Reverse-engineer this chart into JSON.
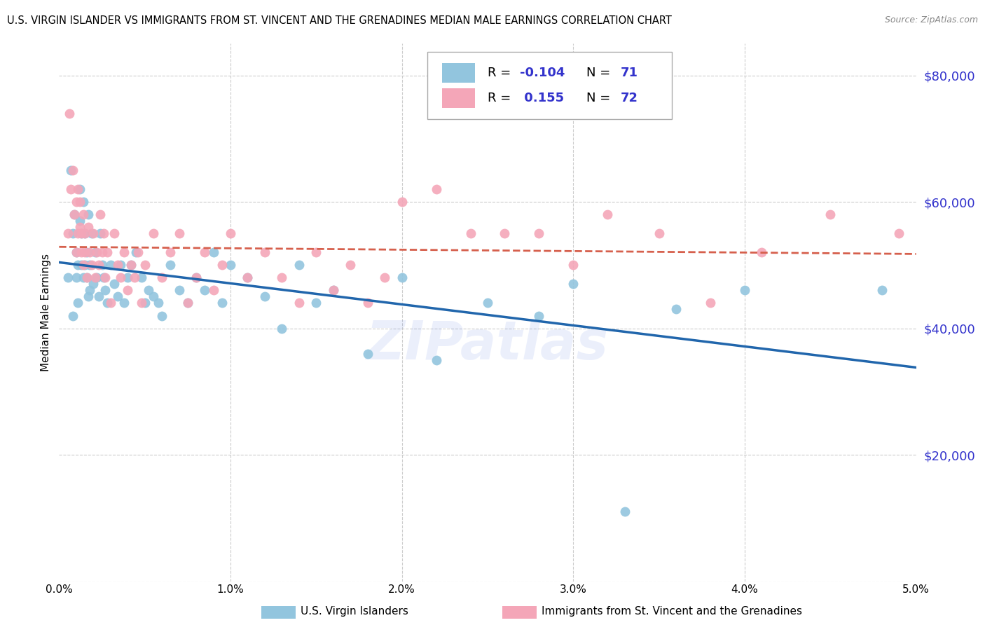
{
  "title": "U.S. VIRGIN ISLANDER VS IMMIGRANTS FROM ST. VINCENT AND THE GRENADINES MEDIAN MALE EARNINGS CORRELATION CHART",
  "source": "Source: ZipAtlas.com",
  "ylabel": "Median Male Earnings",
  "xlim": [
    0.0,
    0.05
  ],
  "ylim": [
    0,
    85000
  ],
  "yticks": [
    20000,
    40000,
    60000,
    80000
  ],
  "footer_label1": "U.S. Virgin Islanders",
  "footer_label2": "Immigrants from St. Vincent and the Grenadines",
  "blue_color": "#92c5de",
  "pink_color": "#f4a6b8",
  "blue_line_color": "#2166ac",
  "pink_line_color": "#d6604d",
  "watermark": "ZIPatlas",
  "blue_x": [
    0.0005,
    0.0007,
    0.0008,
    0.0008,
    0.0009,
    0.001,
    0.001,
    0.0011,
    0.0011,
    0.0012,
    0.0012,
    0.0013,
    0.0013,
    0.0014,
    0.0014,
    0.0015,
    0.0015,
    0.0016,
    0.0016,
    0.0017,
    0.0017,
    0.0018,
    0.0018,
    0.0019,
    0.002,
    0.0021,
    0.0022,
    0.0023,
    0.0024,
    0.0025,
    0.0026,
    0.0027,
    0.0028,
    0.003,
    0.0032,
    0.0034,
    0.0036,
    0.0038,
    0.004,
    0.0042,
    0.0045,
    0.0048,
    0.005,
    0.0052,
    0.0055,
    0.0058,
    0.006,
    0.0065,
    0.007,
    0.0075,
    0.008,
    0.0085,
    0.009,
    0.0095,
    0.01,
    0.011,
    0.012,
    0.013,
    0.014,
    0.015,
    0.016,
    0.018,
    0.02,
    0.022,
    0.025,
    0.028,
    0.03,
    0.033,
    0.036,
    0.04,
    0.048
  ],
  "blue_y": [
    48000,
    65000,
    55000,
    42000,
    58000,
    52000,
    48000,
    50000,
    44000,
    62000,
    57000,
    55000,
    50000,
    48000,
    60000,
    55000,
    50000,
    48000,
    52000,
    58000,
    45000,
    50000,
    46000,
    55000,
    47000,
    52000,
    48000,
    45000,
    55000,
    50000,
    48000,
    46000,
    44000,
    50000,
    47000,
    45000,
    50000,
    44000,
    48000,
    50000,
    52000,
    48000,
    44000,
    46000,
    45000,
    44000,
    42000,
    50000,
    46000,
    44000,
    48000,
    46000,
    52000,
    44000,
    50000,
    48000,
    45000,
    40000,
    50000,
    44000,
    46000,
    36000,
    48000,
    35000,
    44000,
    42000,
    47000,
    11000,
    43000,
    46000,
    46000
  ],
  "pink_x": [
    0.0005,
    0.0006,
    0.0007,
    0.0008,
    0.0009,
    0.001,
    0.001,
    0.0011,
    0.0011,
    0.0012,
    0.0012,
    0.0013,
    0.0013,
    0.0014,
    0.0014,
    0.0015,
    0.0015,
    0.0016,
    0.0017,
    0.0018,
    0.0019,
    0.002,
    0.0021,
    0.0022,
    0.0023,
    0.0024,
    0.0025,
    0.0026,
    0.0027,
    0.0028,
    0.003,
    0.0032,
    0.0034,
    0.0036,
    0.0038,
    0.004,
    0.0042,
    0.0044,
    0.0046,
    0.0048,
    0.005,
    0.0055,
    0.006,
    0.0065,
    0.007,
    0.0075,
    0.008,
    0.0085,
    0.009,
    0.0095,
    0.01,
    0.011,
    0.012,
    0.013,
    0.014,
    0.015,
    0.016,
    0.017,
    0.018,
    0.019,
    0.02,
    0.022,
    0.024,
    0.026,
    0.028,
    0.03,
    0.032,
    0.035,
    0.038,
    0.041,
    0.045,
    0.049
  ],
  "pink_y": [
    55000,
    74000,
    62000,
    65000,
    58000,
    60000,
    52000,
    62000,
    55000,
    60000,
    56000,
    52000,
    55000,
    58000,
    50000,
    52000,
    55000,
    48000,
    56000,
    52000,
    50000,
    55000,
    48000,
    52000,
    50000,
    58000,
    52000,
    55000,
    48000,
    52000,
    44000,
    55000,
    50000,
    48000,
    52000,
    46000,
    50000,
    48000,
    52000,
    44000,
    50000,
    55000,
    48000,
    52000,
    55000,
    44000,
    48000,
    52000,
    46000,
    50000,
    55000,
    48000,
    52000,
    48000,
    44000,
    52000,
    46000,
    50000,
    44000,
    48000,
    60000,
    62000,
    55000,
    55000,
    55000,
    50000,
    58000,
    55000,
    44000,
    52000,
    58000,
    55000
  ]
}
